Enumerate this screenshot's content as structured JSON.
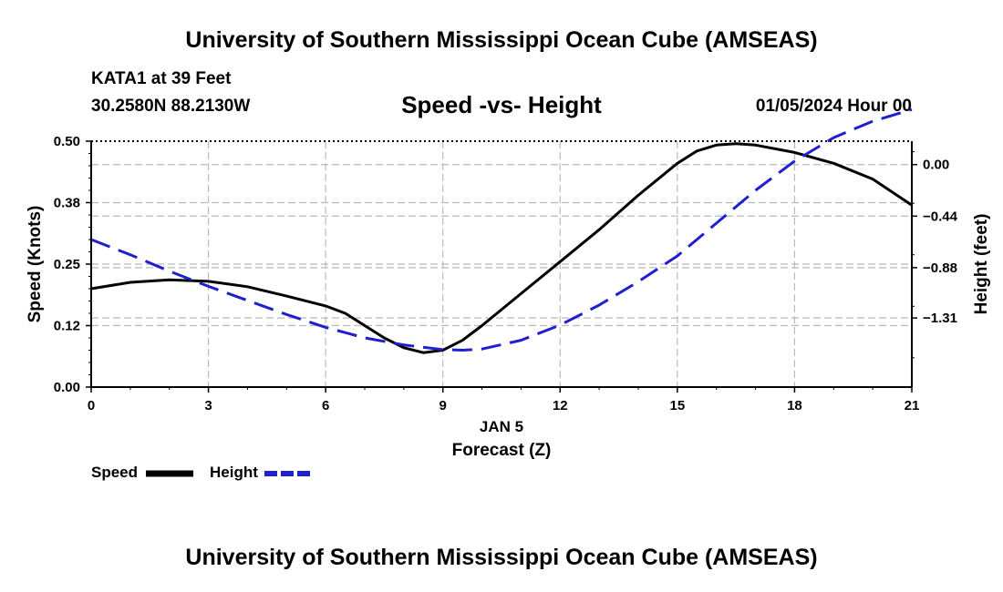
{
  "header": {
    "title": "University of Southern Mississippi Ocean Cube (AMSEAS)",
    "station": "KATA1 at 39 Feet",
    "coordinates": "30.2580N  88.2130W",
    "subtitle": "Speed -vs- Height",
    "date": "01/05/2024 Hour 00"
  },
  "footer": {
    "title": "University of Southern Mississippi Ocean Cube (AMSEAS)"
  },
  "chart_data": {
    "type": "line",
    "title": "Speed -vs- Height",
    "xlabel": "Forecast (Z)",
    "xlabel_date": "JAN 5",
    "ylabel_left": "Speed (Knots)",
    "ylabel_right": "Height (feet)",
    "xlim": [
      0,
      21
    ],
    "ylim_left": [
      0,
      0.5
    ],
    "ylim_right": [
      -1.9,
      0.2
    ],
    "x_ticks": [
      0,
      3,
      6,
      9,
      12,
      15,
      18,
      21
    ],
    "x_tick_labels": [
      "0",
      "3",
      "6",
      "9",
      "12",
      "15",
      "18",
      "21"
    ],
    "y_left_ticks": [
      0,
      0.125,
      0.25,
      0.375,
      0.5
    ],
    "y_left_tick_labels": [
      "0.00",
      "0.12",
      "0.25",
      "0.38",
      "0.50"
    ],
    "y_right_ticks": [
      0.0,
      -0.44,
      -0.88,
      -1.31
    ],
    "y_right_tick_labels": [
      "0.00",
      "−0.44",
      "−0.88",
      "−1.31"
    ],
    "grid": true,
    "series": [
      {
        "name": "Speed",
        "axis": "left",
        "color": "#000000",
        "style": "solid",
        "x": [
          0,
          1,
          2,
          3,
          4,
          5,
          6,
          6.5,
          7,
          7.5,
          8,
          8.5,
          9,
          9.5,
          10,
          11,
          12,
          13,
          14,
          15,
          15.5,
          16,
          16.5,
          17,
          18,
          19,
          20,
          21
        ],
        "values": [
          0.2,
          0.213,
          0.218,
          0.215,
          0.204,
          0.185,
          0.165,
          0.15,
          0.125,
          0.1,
          0.08,
          0.07,
          0.075,
          0.095,
          0.125,
          0.19,
          0.255,
          0.32,
          0.39,
          0.455,
          0.48,
          0.492,
          0.495,
          0.492,
          0.477,
          0.455,
          0.423,
          0.37
        ]
      },
      {
        "name": "Height",
        "axis": "right",
        "color": "#1f1fcf",
        "style": "dashed",
        "x": [
          0,
          1,
          2,
          3,
          4,
          5,
          6,
          7,
          8,
          9,
          9.5,
          10,
          11,
          12,
          13,
          14,
          15,
          16,
          17,
          18,
          19,
          20,
          21
        ],
        "values": [
          -0.64,
          -0.77,
          -0.91,
          -1.04,
          -1.16,
          -1.28,
          -1.39,
          -1.48,
          -1.54,
          -1.58,
          -1.585,
          -1.575,
          -1.5,
          -1.37,
          -1.2,
          -1.0,
          -0.78,
          -0.5,
          -0.22,
          0.03,
          0.23,
          0.37,
          0.47
        ]
      }
    ],
    "legend": [
      {
        "label": "Speed",
        "color": "#000000",
        "style": "solid"
      },
      {
        "label": "Height",
        "color": "#1f1fcf",
        "style": "dashed"
      }
    ]
  }
}
